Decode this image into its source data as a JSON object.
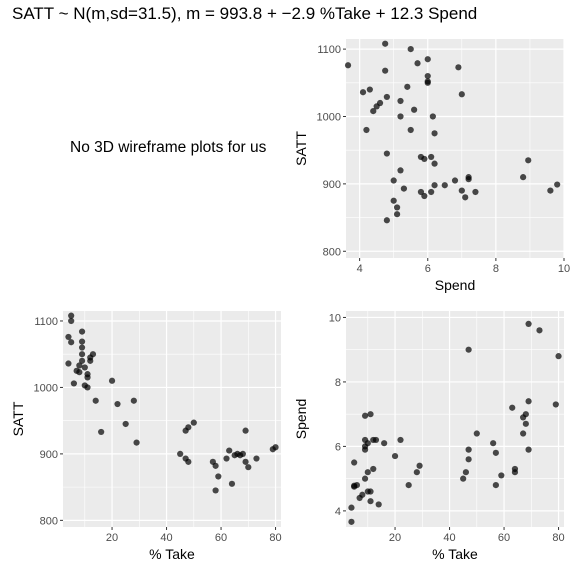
{
  "title": "SATT ~ N(m,sd=31.5), m = 993.8 + −2.9 %Take + 12.3 Spend",
  "note": "No 3D wireframe plots for us",
  "colors": {
    "panel_bg": "#ebebeb",
    "grid": "#ffffff",
    "point": "#000000",
    "tick_text": "#4d4d4d"
  },
  "chart_data": [
    {
      "type": "scatter",
      "position": "top-right",
      "xlabel": "Spend",
      "ylabel": "SATT",
      "xlim": [
        3.6,
        10.0
      ],
      "ylim": [
        790,
        1115
      ],
      "xticks": [
        4,
        6,
        8,
        10
      ],
      "yticks": [
        800,
        900,
        1000,
        1100
      ],
      "grid": "on",
      "points": [
        [
          3.66,
          1076
        ],
        [
          4.1,
          1036
        ],
        [
          4.2,
          980
        ],
        [
          4.3,
          1040
        ],
        [
          4.4,
          1008
        ],
        [
          4.5,
          1015
        ],
        [
          4.6,
          1020
        ],
        [
          4.75,
          1108
        ],
        [
          4.75,
          1068
        ],
        [
          4.8,
          1029
        ],
        [
          4.8,
          945
        ],
        [
          4.8,
          846
        ],
        [
          5.0,
          875
        ],
        [
          5.0,
          905
        ],
        [
          5.1,
          865
        ],
        [
          5.1,
          855
        ],
        [
          5.2,
          1000
        ],
        [
          5.2,
          1023
        ],
        [
          5.2,
          920
        ],
        [
          5.3,
          893
        ],
        [
          5.4,
          1044
        ],
        [
          5.5,
          1100
        ],
        [
          5.5,
          980
        ],
        [
          5.6,
          1010
        ],
        [
          5.7,
          1079
        ],
        [
          5.8,
          940
        ],
        [
          5.8,
          888
        ],
        [
          5.9,
          937
        ],
        [
          5.9,
          882
        ],
        [
          6.0,
          1060
        ],
        [
          6.0,
          1052
        ],
        [
          6.0,
          1050
        ],
        [
          6.0,
          1085
        ],
        [
          6.1,
          940
        ],
        [
          6.1,
          888
        ],
        [
          6.15,
          1000
        ],
        [
          6.2,
          975
        ],
        [
          6.2,
          898
        ],
        [
          6.2,
          930
        ],
        [
          6.5,
          898
        ],
        [
          6.8,
          905
        ],
        [
          6.9,
          1073
        ],
        [
          7.0,
          1033
        ],
        [
          7.0,
          890
        ],
        [
          7.1,
          880
        ],
        [
          7.2,
          910
        ],
        [
          7.2,
          907
        ],
        [
          7.4,
          888
        ],
        [
          8.8,
          910
        ],
        [
          8.95,
          935
        ],
        [
          9.6,
          890
        ],
        [
          9.8,
          899
        ]
      ]
    },
    {
      "type": "scatter",
      "position": "bottom-left",
      "xlabel": "% Take",
      "ylabel": "SATT",
      "xlim": [
        2,
        82
      ],
      "ylim": [
        790,
        1115
      ],
      "xticks": [
        20,
        40,
        60,
        80
      ],
      "yticks": [
        800,
        900,
        1000,
        1100
      ],
      "grid": "on",
      "points": [
        [
          4,
          1036
        ],
        [
          4,
          1076
        ],
        [
          5,
          1108
        ],
        [
          5,
          1100
        ],
        [
          5,
          1068
        ],
        [
          6,
          1006
        ],
        [
          7,
          1025
        ],
        [
          8,
          1033
        ],
        [
          8,
          1023
        ],
        [
          9,
          1084
        ],
        [
          9,
          1069
        ],
        [
          9,
          1060
        ],
        [
          9,
          1050
        ],
        [
          9,
          1040
        ],
        [
          10,
          1030
        ],
        [
          10,
          1003
        ],
        [
          11,
          1000
        ],
        [
          11,
          1015
        ],
        [
          11,
          1020
        ],
        [
          12,
          1045
        ],
        [
          12,
          1040
        ],
        [
          13,
          1050
        ],
        [
          14,
          980
        ],
        [
          16,
          933
        ],
        [
          20,
          1010
        ],
        [
          22,
          975
        ],
        [
          25,
          945
        ],
        [
          28,
          980
        ],
        [
          29,
          917
        ],
        [
          45,
          900
        ],
        [
          47,
          935
        ],
        [
          47,
          893
        ],
        [
          48,
          940
        ],
        [
          48,
          888
        ],
        [
          50,
          947
        ],
        [
          57,
          888
        ],
        [
          58,
          882
        ],
        [
          58,
          845
        ],
        [
          59,
          866
        ],
        [
          62,
          893
        ],
        [
          63,
          905
        ],
        [
          64,
          855
        ],
        [
          65,
          898
        ],
        [
          66,
          900
        ],
        [
          67,
          898
        ],
        [
          68,
          900
        ],
        [
          69,
          935
        ],
        [
          69,
          888
        ],
        [
          70,
          880
        ],
        [
          73,
          893
        ],
        [
          79,
          907
        ],
        [
          80,
          910
        ]
      ]
    },
    {
      "type": "scatter",
      "position": "bottom-right",
      "xlabel": "% Take",
      "ylabel": "Spend",
      "xlim": [
        2,
        82
      ],
      "ylim": [
        3.5,
        10.2
      ],
      "xticks": [
        20,
        40,
        60,
        80
      ],
      "yticks": [
        4,
        6,
        8,
        10
      ],
      "grid": "on",
      "points": [
        [
          4,
          3.66
        ],
        [
          4,
          4.1
        ],
        [
          5,
          4.75
        ],
        [
          5,
          4.78
        ],
        [
          5,
          5.5
        ],
        [
          6,
          4.8
        ],
        [
          7,
          4.4
        ],
        [
          8,
          4.5
        ],
        [
          9,
          5.0
        ],
        [
          9,
          5.9
        ],
        [
          9,
          6.0
        ],
        [
          9,
          6.2
        ],
        [
          9,
          6.95
        ],
        [
          10,
          4.6
        ],
        [
          10,
          5.2
        ],
        [
          10,
          6.1
        ],
        [
          11,
          4.3
        ],
        [
          11,
          4.6
        ],
        [
          11,
          7.0
        ],
        [
          12,
          5.3
        ],
        [
          12,
          6.2
        ],
        [
          13,
          6.2
        ],
        [
          14,
          4.2
        ],
        [
          16,
          6.1
        ],
        [
          20,
          5.7
        ],
        [
          22,
          6.2
        ],
        [
          25,
          4.8
        ],
        [
          28,
          5.2
        ],
        [
          29,
          5.4
        ],
        [
          45,
          5.0
        ],
        [
          46,
          5.2
        ],
        [
          47,
          5.6
        ],
        [
          47,
          5.9
        ],
        [
          47,
          9.0
        ],
        [
          50,
          6.4
        ],
        [
          56,
          6.1
        ],
        [
          57,
          5.8
        ],
        [
          57,
          4.8
        ],
        [
          59,
          5.1
        ],
        [
          63,
          7.2
        ],
        [
          64,
          5.3
        ],
        [
          64,
          5.2
        ],
        [
          67,
          6.9
        ],
        [
          67,
          6.4
        ],
        [
          68,
          6.7
        ],
        [
          68,
          7.0
        ],
        [
          69,
          9.8
        ],
        [
          69,
          7.4
        ],
        [
          69,
          5.9
        ],
        [
          73,
          9.6
        ],
        [
          79,
          7.3
        ],
        [
          80,
          8.8
        ]
      ]
    }
  ]
}
